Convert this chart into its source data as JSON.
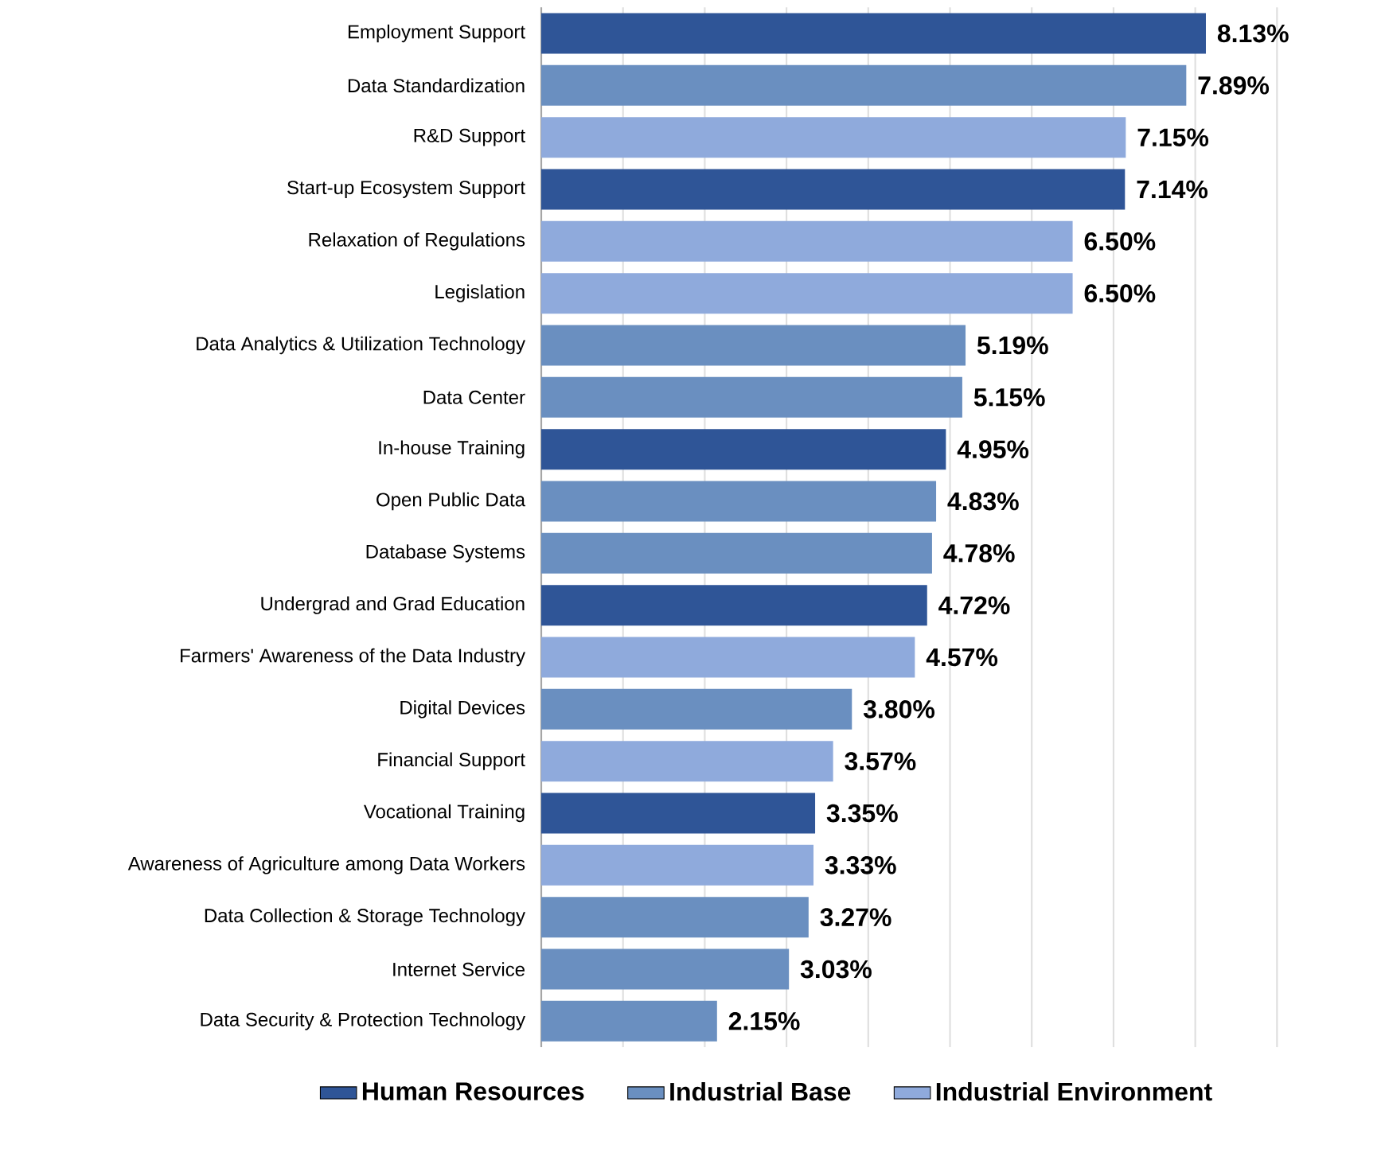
{
  "chart_data": {
    "type": "bar",
    "orientation": "horizontal",
    "categories": [
      "Employment Support",
      "Data Standardization",
      "R&D Support",
      "Start-up Ecosystem Support",
      "Relaxation of Regulations",
      "Legislation",
      "Data Analytics & Utilization Technology",
      "Data Center",
      "In-house Training",
      "Open Public Data",
      "Database Systems",
      "Undergrad and Grad Education",
      "Farmers' Awareness of the Data Industry",
      "Digital Devices",
      "Financial Support",
      "Vocational Training",
      "Awareness of Agriculture among Data Workers",
      "Data Collection & Storage Technology",
      "Internet Service",
      "Data Security & Protection Technology"
    ],
    "series": [
      {
        "name": "Human Resources",
        "color": "#2f5597",
        "values": [
          8.13,
          null,
          null,
          7.14,
          null,
          null,
          null,
          null,
          4.95,
          null,
          null,
          4.72,
          null,
          null,
          null,
          3.35,
          null,
          null,
          null,
          null
        ],
        "value_labels": [
          "8.13%",
          null,
          null,
          "7.14%",
          null,
          null,
          null,
          null,
          "4.95%",
          null,
          null,
          "4.72%",
          null,
          null,
          null,
          "3.35%",
          null,
          null,
          null,
          null
        ]
      },
      {
        "name": "Industrial Base",
        "color": "#6a8fc0",
        "values": [
          null,
          7.89,
          null,
          null,
          null,
          null,
          5.19,
          5.15,
          null,
          4.83,
          4.78,
          null,
          null,
          3.8,
          null,
          null,
          null,
          3.27,
          3.03,
          2.15
        ],
        "value_labels": [
          null,
          "7.89%",
          null,
          null,
          null,
          null,
          "5.19%",
          "5.15%",
          null,
          "4.83%",
          "4.78%",
          null,
          null,
          "3.80%",
          null,
          null,
          null,
          "3.27%",
          "3.03%",
          "2.15%"
        ]
      },
      {
        "name": "Industrial Environment",
        "color": "#8faadc",
        "values": [
          null,
          null,
          7.15,
          null,
          6.5,
          6.5,
          null,
          null,
          null,
          null,
          null,
          null,
          4.57,
          null,
          3.57,
          null,
          3.33,
          null,
          null,
          null
        ],
        "value_labels": [
          null,
          null,
          "7.15%",
          null,
          "6.50%",
          "6.50%",
          null,
          null,
          null,
          null,
          null,
          null,
          "4.57%",
          null,
          "3.57%",
          null,
          "3.33%",
          null,
          null,
          null
        ]
      }
    ],
    "grid": "x",
    "legend": "bottom",
    "tick_labels": "y"
  }
}
